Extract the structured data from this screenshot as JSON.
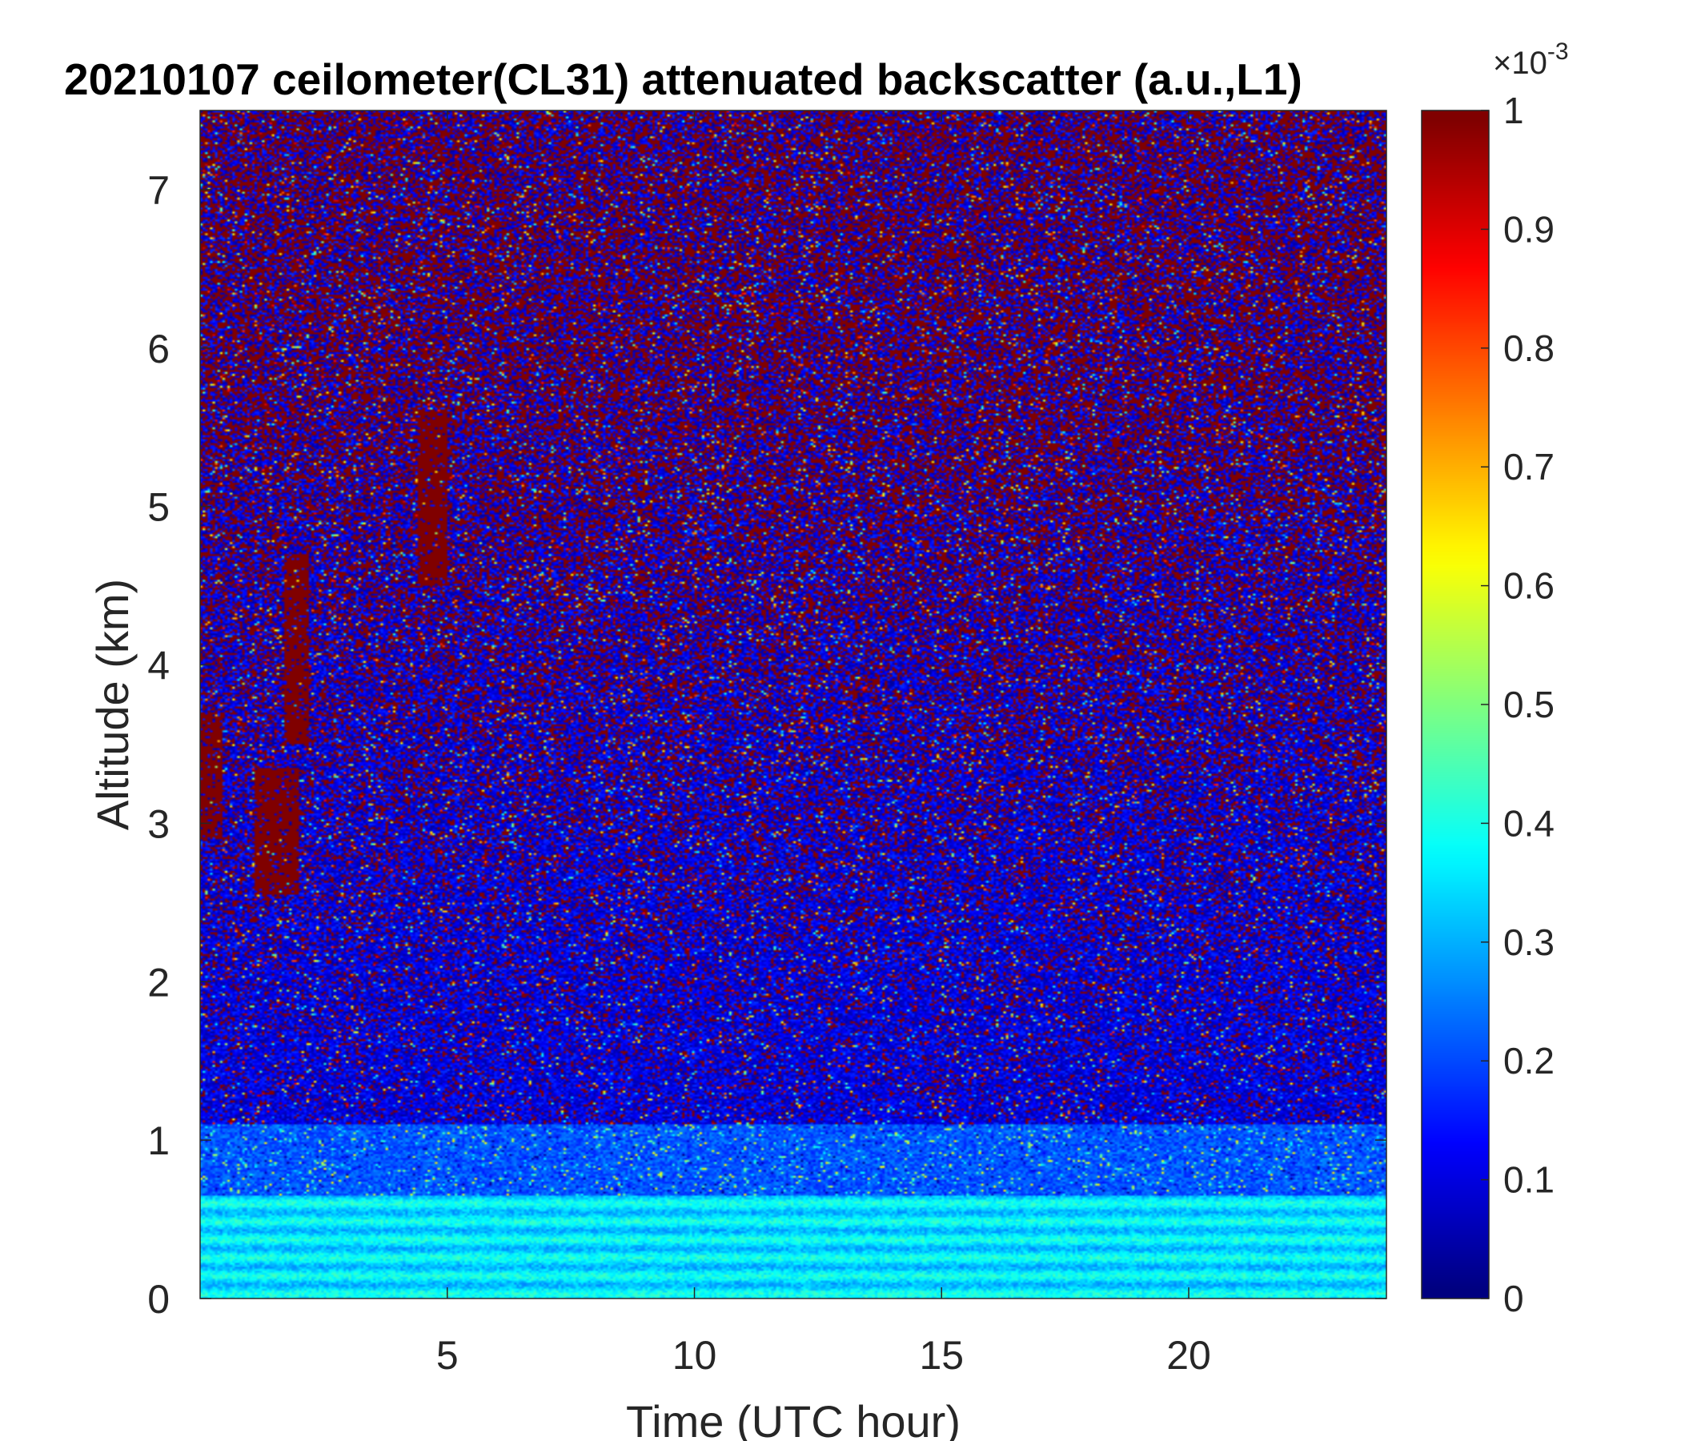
{
  "chart_data": {
    "type": "heatmap",
    "title": "20210107 ceilometer(CL31) attenuated backscatter (a.u.,L1)",
    "xlabel": "Time (UTC hour)",
    "ylabel": "Altitude (km)",
    "xlim": [
      0,
      24
    ],
    "ylim": [
      0,
      7.5
    ],
    "x_ticks": [
      5,
      10,
      15,
      20
    ],
    "y_ticks": [
      0,
      1,
      2,
      3,
      4,
      5,
      6,
      7
    ],
    "colorbar": {
      "colormap": "jet",
      "range": [
        0,
        1
      ],
      "ticks": [
        "0",
        "0.1",
        "0.2",
        "0.3",
        "0.4",
        "0.5",
        "0.6",
        "0.7",
        "0.8",
        "0.9",
        "1"
      ],
      "multiplier_base": "×10",
      "multiplier_exp": "-3"
    },
    "grid": false,
    "layers": [
      {
        "name": "near-surface aerosol layer",
        "altitude_km": [
          0.0,
          0.65
        ],
        "typical_value": 0.35
      },
      {
        "name": "upper boundary layer",
        "altitude_km": [
          0.65,
          1.1
        ],
        "typical_value": 0.2
      },
      {
        "name": "free troposphere (noise)",
        "altitude_km": [
          1.1,
          7.5
        ],
        "typical_value": "noise 0-1"
      }
    ],
    "features": [
      {
        "name": "cloud patch",
        "time_h": [
          0.0,
          0.45
        ],
        "altitude_km": [
          2.9,
          3.7
        ],
        "value": 1.0
      },
      {
        "name": "cloud patch",
        "time_h": [
          1.1,
          2.0
        ],
        "altitude_km": [
          2.55,
          3.35
        ],
        "value": 1.0
      },
      {
        "name": "cloud streak",
        "time_h": [
          1.7,
          2.2
        ],
        "altitude_km": [
          3.5,
          4.7
        ],
        "value": 1.0
      },
      {
        "name": "cloud streak",
        "time_h": [
          4.4,
          5.0
        ],
        "altitude_km": [
          4.5,
          5.6
        ],
        "value": 1.0
      }
    ]
  }
}
